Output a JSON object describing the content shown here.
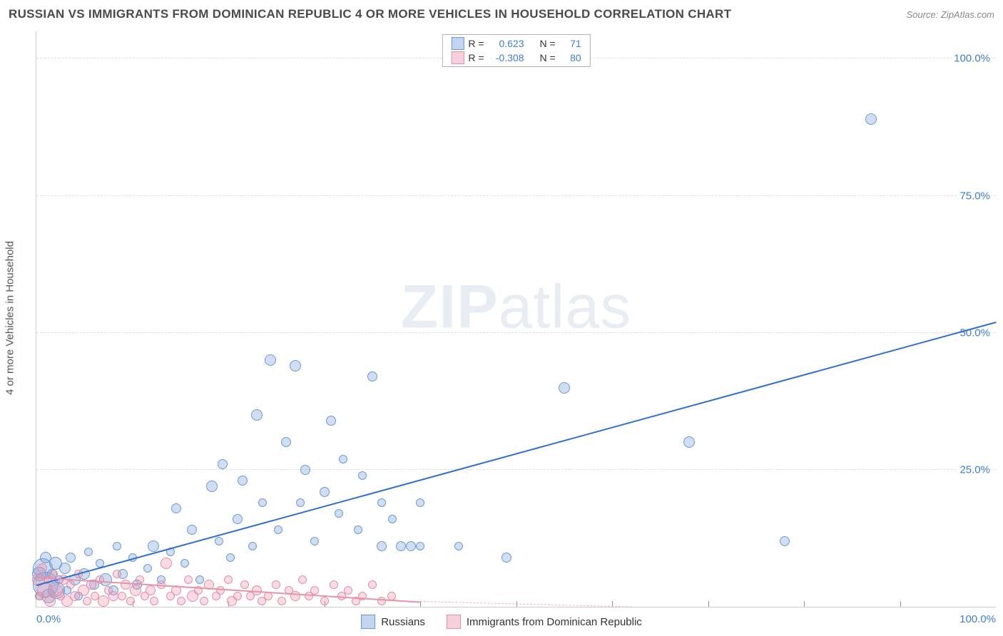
{
  "header": {
    "title": "RUSSIAN VS IMMIGRANTS FROM DOMINICAN REPUBLIC 4 OR MORE VEHICLES IN HOUSEHOLD CORRELATION CHART",
    "source": "Source: ZipAtlas.com"
  },
  "yaxis": {
    "label": "4 or more Vehicles in Household"
  },
  "watermark": {
    "zip": "ZIP",
    "atlas": "atlas"
  },
  "chart": {
    "type": "scatter",
    "xlim": [
      0,
      100
    ],
    "ylim": [
      0,
      105
    ],
    "xticks": [
      0,
      100
    ],
    "xtick_labels": [
      "0.0%",
      "100.0%"
    ],
    "xtick_minor": [
      10,
      20,
      30,
      40,
      50,
      60,
      70,
      80,
      90
    ],
    "yticks": [
      25,
      50,
      75,
      100
    ],
    "ytick_labels": [
      "25.0%",
      "50.0%",
      "75.0%",
      "100.0%"
    ],
    "grid_color": "#dddddd",
    "background_color": "#ffffff",
    "axis_color": "#cccccc",
    "tick_label_color": "#3b7dd8",
    "tick_label_fontsize": 15
  },
  "series": [
    {
      "name": "Russians",
      "fill": "rgba(120,160,220,0.35)",
      "stroke": "#6b9bd1",
      "trend": {
        "color": "#2f6fd0",
        "width": 2.5,
        "x1": 0,
        "y1": 4,
        "x2": 100,
        "y2": 52,
        "dash": "solid"
      },
      "stats": {
        "R": "0.623",
        "N": "71"
      },
      "points": [
        {
          "x": 0.3,
          "y": 6,
          "r": 10
        },
        {
          "x": 0.3,
          "y": 2,
          "r": 6
        },
        {
          "x": 0.7,
          "y": 7,
          "r": 14
        },
        {
          "x": 1,
          "y": 4,
          "r": 18
        },
        {
          "x": 1,
          "y": 9,
          "r": 8
        },
        {
          "x": 1.3,
          "y": 2,
          "r": 10
        },
        {
          "x": 1.6,
          "y": 6,
          "r": 7
        },
        {
          "x": 2,
          "y": 8,
          "r": 9
        },
        {
          "x": 2.1,
          "y": 3,
          "r": 12
        },
        {
          "x": 2.4,
          "y": 5,
          "r": 6
        },
        {
          "x": 3,
          "y": 7,
          "r": 8
        },
        {
          "x": 3.2,
          "y": 3,
          "r": 6
        },
        {
          "x": 3.6,
          "y": 9,
          "r": 7
        },
        {
          "x": 4,
          "y": 5,
          "r": 8
        },
        {
          "x": 4.4,
          "y": 2,
          "r": 6
        },
        {
          "x": 5,
          "y": 6,
          "r": 8
        },
        {
          "x": 5.4,
          "y": 10,
          "r": 6
        },
        {
          "x": 6,
          "y": 4,
          "r": 7
        },
        {
          "x": 6.6,
          "y": 8,
          "r": 6
        },
        {
          "x": 7.2,
          "y": 5,
          "r": 9
        },
        {
          "x": 8,
          "y": 3,
          "r": 7
        },
        {
          "x": 8.4,
          "y": 11,
          "r": 6
        },
        {
          "x": 9,
          "y": 6,
          "r": 7
        },
        {
          "x": 10,
          "y": 9,
          "r": 6
        },
        {
          "x": 10.5,
          "y": 4,
          "r": 7
        },
        {
          "x": 11.6,
          "y": 7,
          "r": 6
        },
        {
          "x": 12.2,
          "y": 11,
          "r": 8
        },
        {
          "x": 13,
          "y": 5,
          "r": 6
        },
        {
          "x": 14,
          "y": 10,
          "r": 6
        },
        {
          "x": 14.6,
          "y": 18,
          "r": 7
        },
        {
          "x": 15.5,
          "y": 8,
          "r": 6
        },
        {
          "x": 16.2,
          "y": 14,
          "r": 7
        },
        {
          "x": 17,
          "y": 5,
          "r": 6
        },
        {
          "x": 18.3,
          "y": 22,
          "r": 8
        },
        {
          "x": 19,
          "y": 12,
          "r": 6
        },
        {
          "x": 19.4,
          "y": 26,
          "r": 7
        },
        {
          "x": 20.2,
          "y": 9,
          "r": 6
        },
        {
          "x": 21,
          "y": 16,
          "r": 7
        },
        {
          "x": 21.5,
          "y": 23,
          "r": 7
        },
        {
          "x": 22.5,
          "y": 11,
          "r": 6
        },
        {
          "x": 23,
          "y": 35,
          "r": 8
        },
        {
          "x": 23.6,
          "y": 19,
          "r": 6
        },
        {
          "x": 24.4,
          "y": 45,
          "r": 8
        },
        {
          "x": 25.2,
          "y": 14,
          "r": 6
        },
        {
          "x": 26,
          "y": 30,
          "r": 7
        },
        {
          "x": 27,
          "y": 44,
          "r": 8
        },
        {
          "x": 27.5,
          "y": 19,
          "r": 6
        },
        {
          "x": 28,
          "y": 25,
          "r": 7
        },
        {
          "x": 29,
          "y": 12,
          "r": 6
        },
        {
          "x": 30,
          "y": 21,
          "r": 7
        },
        {
          "x": 30.7,
          "y": 34,
          "r": 7
        },
        {
          "x": 31.5,
          "y": 17,
          "r": 6
        },
        {
          "x": 32,
          "y": 27,
          "r": 6
        },
        {
          "x": 33.5,
          "y": 14,
          "r": 6
        },
        {
          "x": 34,
          "y": 24,
          "r": 6
        },
        {
          "x": 35,
          "y": 42,
          "r": 7
        },
        {
          "x": 36,
          "y": 19,
          "r": 6
        },
        {
          "x": 36,
          "y": 11,
          "r": 7
        },
        {
          "x": 37.1,
          "y": 16,
          "r": 6
        },
        {
          "x": 38,
          "y": 11,
          "r": 7
        },
        {
          "x": 39,
          "y": 11,
          "r": 7
        },
        {
          "x": 40,
          "y": 19,
          "r": 6
        },
        {
          "x": 40,
          "y": 11,
          "r": 6
        },
        {
          "x": 44,
          "y": 11,
          "r": 6
        },
        {
          "x": 49,
          "y": 9,
          "r": 7
        },
        {
          "x": 55,
          "y": 40,
          "r": 8
        },
        {
          "x": 68,
          "y": 30,
          "r": 8
        },
        {
          "x": 78,
          "y": 12,
          "r": 7
        },
        {
          "x": 87,
          "y": 89,
          "r": 8
        }
      ]
    },
    {
      "name": "Immigrants from Dominican Republic",
      "fill": "rgba(240,150,175,0.35)",
      "stroke": "#e090a8",
      "trend": {
        "color": "#e494a9",
        "width": 2,
        "x1": 0,
        "y1": 5.5,
        "x2": 40,
        "y2": 1,
        "dash": "solid"
      },
      "trend_ext": {
        "color": "#e8b5c2",
        "width": 1.5,
        "x1": 40,
        "y1": 1,
        "x2": 62,
        "y2": 0,
        "dash": "dashed"
      },
      "stats": {
        "R": "-0.308",
        "N": "80"
      },
      "points": [
        {
          "x": 0.2,
          "y": 5,
          "r": 9
        },
        {
          "x": 0.4,
          "y": 2,
          "r": 6
        },
        {
          "x": 0.6,
          "y": 7,
          "r": 7
        },
        {
          "x": 0.9,
          "y": 3,
          "r": 11
        },
        {
          "x": 1.2,
          "y": 5,
          "r": 6
        },
        {
          "x": 1.4,
          "y": 1,
          "r": 8
        },
        {
          "x": 1.8,
          "y": 6,
          "r": 6
        },
        {
          "x": 2.1,
          "y": 3,
          "r": 9
        },
        {
          "x": 2.5,
          "y": 2,
          "r": 6
        },
        {
          "x": 2.8,
          "y": 5,
          "r": 7
        },
        {
          "x": 3.2,
          "y": 1,
          "r": 8
        },
        {
          "x": 3.6,
          "y": 4,
          "r": 6
        },
        {
          "x": 4,
          "y": 2,
          "r": 7
        },
        {
          "x": 4.4,
          "y": 6,
          "r": 6
        },
        {
          "x": 4.9,
          "y": 3,
          "r": 8
        },
        {
          "x": 5.3,
          "y": 1,
          "r": 6
        },
        {
          "x": 5.7,
          "y": 4,
          "r": 7
        },
        {
          "x": 6.1,
          "y": 2,
          "r": 6
        },
        {
          "x": 6.6,
          "y": 5,
          "r": 6
        },
        {
          "x": 7,
          "y": 1,
          "r": 8
        },
        {
          "x": 7.5,
          "y": 3,
          "r": 6
        },
        {
          "x": 8,
          "y": 2,
          "r": 7
        },
        {
          "x": 8.4,
          "y": 6,
          "r": 6
        },
        {
          "x": 8.9,
          "y": 2,
          "r": 6
        },
        {
          "x": 9.3,
          "y": 4,
          "r": 7
        },
        {
          "x": 9.8,
          "y": 1,
          "r": 6
        },
        {
          "x": 10.3,
          "y": 3,
          "r": 8
        },
        {
          "x": 10.8,
          "y": 5,
          "r": 6
        },
        {
          "x": 11.3,
          "y": 2,
          "r": 6
        },
        {
          "x": 11.9,
          "y": 3,
          "r": 7
        },
        {
          "x": 12.3,
          "y": 1,
          "r": 6
        },
        {
          "x": 13,
          "y": 4,
          "r": 6
        },
        {
          "x": 13.5,
          "y": 8,
          "r": 8
        },
        {
          "x": 14,
          "y": 2,
          "r": 6
        },
        {
          "x": 14.6,
          "y": 3,
          "r": 7
        },
        {
          "x": 15.1,
          "y": 1,
          "r": 6
        },
        {
          "x": 15.8,
          "y": 5,
          "r": 6
        },
        {
          "x": 16.3,
          "y": 2,
          "r": 8
        },
        {
          "x": 16.9,
          "y": 3,
          "r": 6
        },
        {
          "x": 17.5,
          "y": 1,
          "r": 6
        },
        {
          "x": 18,
          "y": 4,
          "r": 7
        },
        {
          "x": 18.7,
          "y": 2,
          "r": 6
        },
        {
          "x": 19.2,
          "y": 3,
          "r": 6
        },
        {
          "x": 20,
          "y": 5,
          "r": 6
        },
        {
          "x": 20.4,
          "y": 1,
          "r": 7
        },
        {
          "x": 21,
          "y": 2,
          "r": 6
        },
        {
          "x": 21.7,
          "y": 4,
          "r": 6
        },
        {
          "x": 22.3,
          "y": 2,
          "r": 6
        },
        {
          "x": 23,
          "y": 3,
          "r": 7
        },
        {
          "x": 23.5,
          "y": 1,
          "r": 6
        },
        {
          "x": 24.2,
          "y": 2,
          "r": 6
        },
        {
          "x": 25,
          "y": 4,
          "r": 6
        },
        {
          "x": 25.6,
          "y": 1,
          "r": 6
        },
        {
          "x": 26.3,
          "y": 3,
          "r": 6
        },
        {
          "x": 27,
          "y": 2,
          "r": 7
        },
        {
          "x": 27.7,
          "y": 5,
          "r": 6
        },
        {
          "x": 28.4,
          "y": 2,
          "r": 6
        },
        {
          "x": 29,
          "y": 3,
          "r": 6
        },
        {
          "x": 30,
          "y": 1,
          "r": 6
        },
        {
          "x": 31,
          "y": 4,
          "r": 6
        },
        {
          "x": 31.8,
          "y": 2,
          "r": 6
        },
        {
          "x": 32.5,
          "y": 3,
          "r": 6
        },
        {
          "x": 33.3,
          "y": 1,
          "r": 6
        },
        {
          "x": 34,
          "y": 2,
          "r": 6
        },
        {
          "x": 35,
          "y": 4,
          "r": 6
        },
        {
          "x": 36,
          "y": 1,
          "r": 6
        },
        {
          "x": 37,
          "y": 2,
          "r": 6
        }
      ]
    }
  ],
  "legend_bottom": [
    {
      "label": "Russians",
      "fill": "rgba(120,160,220,0.45)",
      "stroke": "#6b9bd1"
    },
    {
      "label": "Immigrants from Dominican Republic",
      "fill": "rgba(240,150,175,0.45)",
      "stroke": "#e090a8"
    }
  ],
  "stat_legend": [
    {
      "fill": "rgba(120,160,220,0.45)",
      "stroke": "#6b9bd1",
      "R_label": "R =",
      "R": "0.623",
      "N_label": "N =",
      "N": "71"
    },
    {
      "fill": "rgba(240,150,175,0.45)",
      "stroke": "#e090a8",
      "R_label": "R =",
      "R": "-0.308",
      "N_label": "N =",
      "N": "80"
    }
  ]
}
